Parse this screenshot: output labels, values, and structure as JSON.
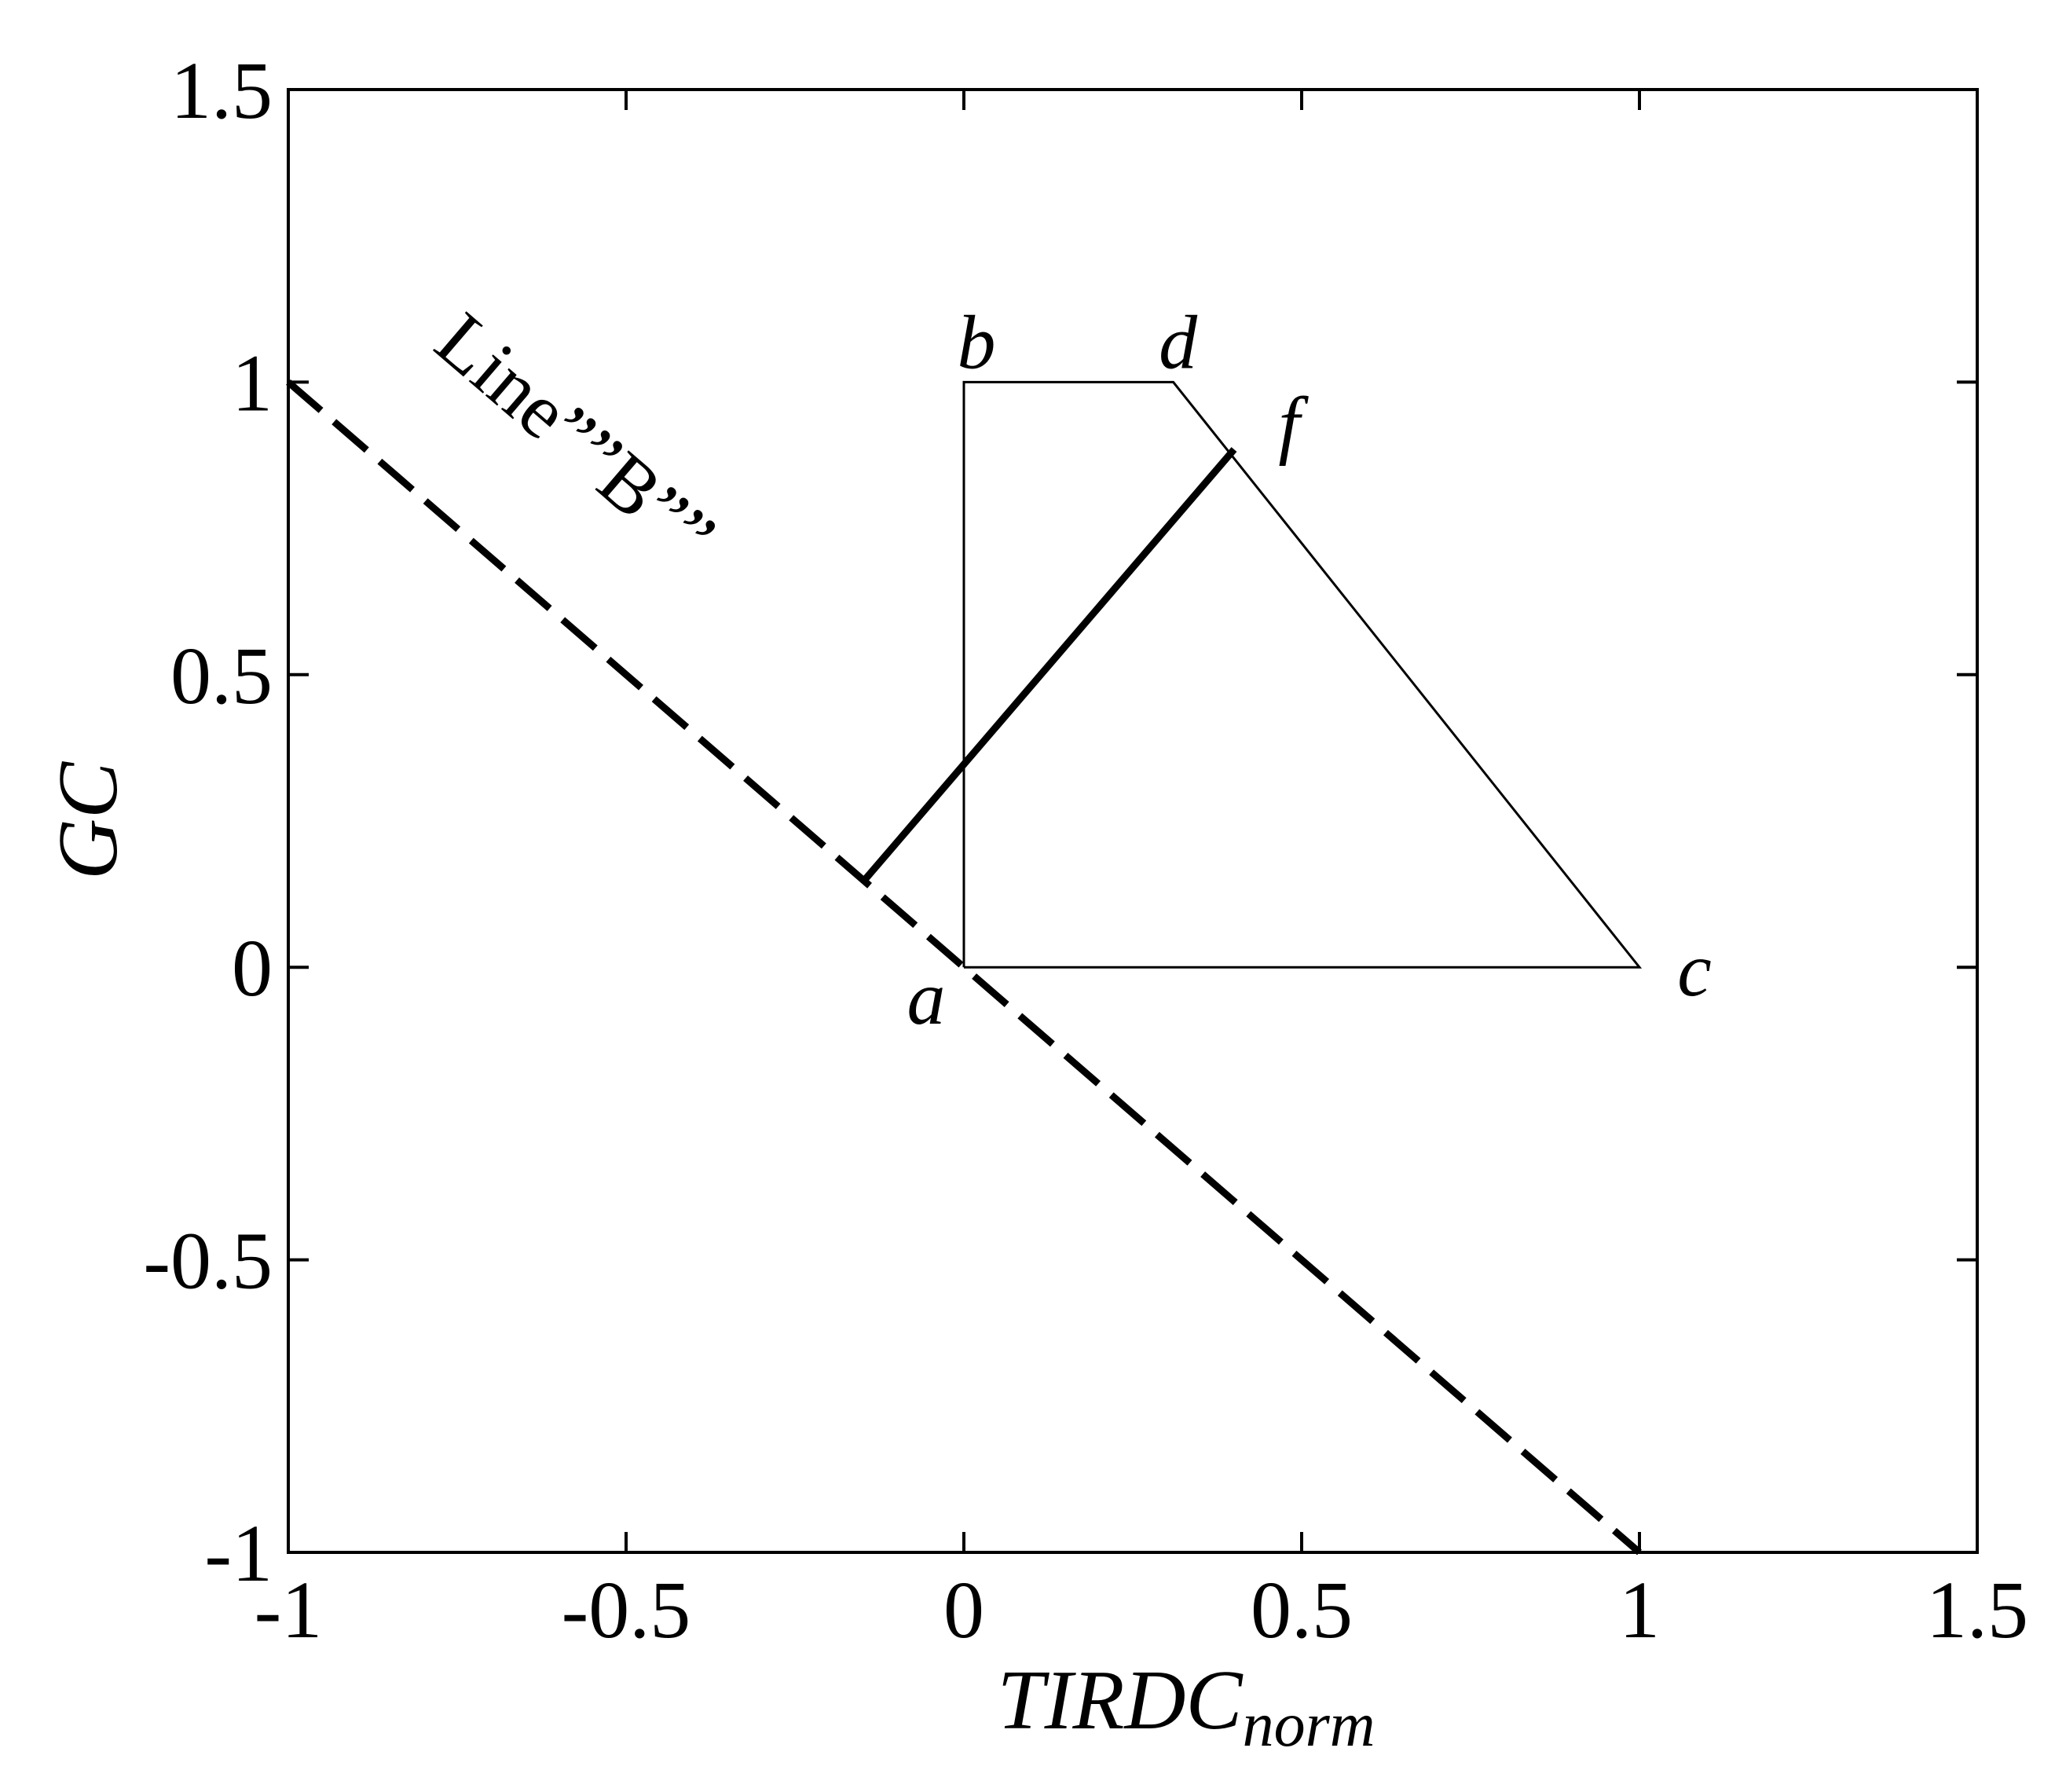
{
  "chart_data": {
    "type": "line",
    "title": "",
    "xlabel": "TIRDC",
    "xlabel_subscript": "norm",
    "ylabel": "GC",
    "xlim": [
      -1,
      1.5
    ],
    "ylim": [
      -1,
      1.5
    ],
    "x_ticks": [
      -1,
      -0.5,
      0,
      0.5,
      1,
      1.5
    ],
    "x_tick_labels": [
      "-1",
      "-0.5",
      "0",
      "0.5",
      "1",
      "1.5"
    ],
    "y_ticks": [
      -1,
      -0.5,
      0,
      0.5,
      1,
      1.5
    ],
    "y_tick_labels": [
      "-1",
      "-0.5",
      "0",
      "0.5",
      "1",
      "1.5"
    ],
    "grid": false,
    "series": [
      {
        "style": "dashed-thick",
        "x": [
          -1,
          1
        ],
        "y": [
          1,
          -1
        ]
      },
      {
        "style": "solid-thin",
        "x": [
          0,
          0,
          0.31,
          1,
          0
        ],
        "y": [
          0,
          1,
          1,
          0,
          0
        ]
      },
      {
        "style": "solid-thick",
        "x": [
          -0.15,
          0.4
        ],
        "y": [
          0.145,
          0.885
        ]
      }
    ],
    "point_labels": [
      {
        "text": "a",
        "x": 0,
        "y": 0
      },
      {
        "text": "b",
        "x": 0,
        "y": 1
      },
      {
        "text": "d",
        "x": 0.31,
        "y": 1
      },
      {
        "text": "f",
        "x": 0.4,
        "y": 0.885
      },
      {
        "text": "c",
        "x": 1,
        "y": 0
      }
    ],
    "annotation": {
      "text": "Line””B””",
      "x": -0.6,
      "y": 0.87
    }
  }
}
